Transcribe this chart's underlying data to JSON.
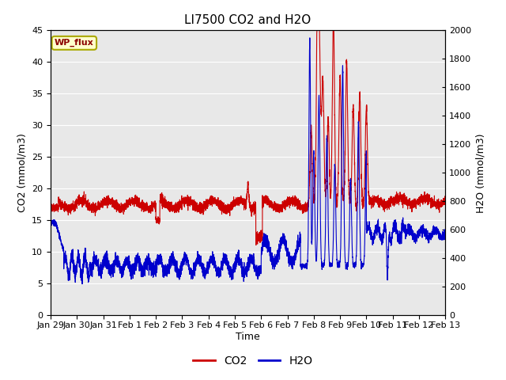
{
  "title": "LI7500 CO2 and H2O",
  "xlabel": "Time",
  "ylabel_left": "CO2 (mmol/m3)",
  "ylabel_right": "H2O (mmol/m3)",
  "xlim_days": [
    0,
    15
  ],
  "ylim_left": [
    0,
    45
  ],
  "ylim_right": [
    0,
    2000
  ],
  "yticks_left": [
    0,
    5,
    10,
    15,
    20,
    25,
    30,
    35,
    40,
    45
  ],
  "yticks_right": [
    0,
    200,
    400,
    600,
    800,
    1000,
    1200,
    1400,
    1600,
    1800,
    2000
  ],
  "xtick_labels": [
    "Jan 29",
    "Jan 30",
    "Jan 31",
    "Feb 1",
    "Feb 2",
    "Feb 3",
    "Feb 4",
    "Feb 5",
    "Feb 6",
    "Feb 7",
    "Feb 8",
    "Feb 9",
    "Feb 10",
    "Feb 11",
    "Feb 12",
    "Feb 13"
  ],
  "co2_color": "#cc0000",
  "h2o_color": "#0000cc",
  "figure_bg": "#ffffff",
  "axes_bg": "#e8e8e8",
  "grid_color": "#ffffff",
  "annotation_text": "WP_flux",
  "annotation_bg": "#ffffcc",
  "annotation_border": "#aaa800",
  "legend_co2": "CO2",
  "legend_h2o": "H2O",
  "title_fontsize": 11,
  "axis_label_fontsize": 9,
  "tick_fontsize": 8,
  "linewidth": 0.8
}
